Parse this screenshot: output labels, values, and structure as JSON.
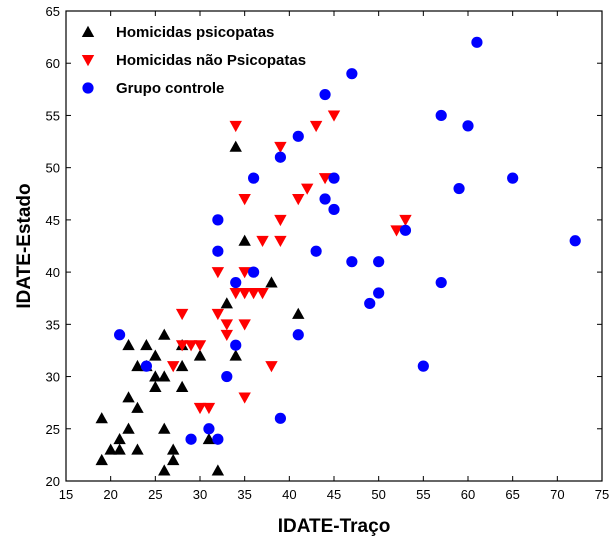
{
  "chart_data": {
    "type": "scatter",
    "xlabel": "IDATE-Traço",
    "ylabel": "IDATE-Estado",
    "xlim": [
      15,
      75
    ],
    "ylim": [
      20,
      65
    ],
    "x_ticks": [
      15,
      20,
      25,
      30,
      35,
      40,
      45,
      50,
      55,
      60,
      65,
      70,
      75
    ],
    "y_ticks": [
      20,
      25,
      30,
      35,
      40,
      45,
      50,
      55,
      60,
      65
    ],
    "grid": false,
    "legend_position": "top-left",
    "series": [
      {
        "name": "Homicidas psicopatas",
        "marker": "triangle-up",
        "color": "#000000",
        "points": [
          [
            19,
            26
          ],
          [
            19,
            22
          ],
          [
            20,
            23
          ],
          [
            21,
            24
          ],
          [
            21,
            23
          ],
          [
            22,
            33
          ],
          [
            22,
            28
          ],
          [
            22,
            25
          ],
          [
            23,
            31
          ],
          [
            23,
            27
          ],
          [
            23,
            23
          ],
          [
            24,
            33
          ],
          [
            24,
            31
          ],
          [
            25,
            32
          ],
          [
            25,
            30
          ],
          [
            25,
            29
          ],
          [
            26,
            34
          ],
          [
            26,
            30
          ],
          [
            26,
            25
          ],
          [
            26,
            21
          ],
          [
            27,
            23
          ],
          [
            27,
            22
          ],
          [
            28,
            33
          ],
          [
            28,
            31
          ],
          [
            28,
            29
          ],
          [
            30,
            32
          ],
          [
            31,
            24
          ],
          [
            32,
            21
          ],
          [
            33,
            37
          ],
          [
            34,
            52
          ],
          [
            34,
            32
          ],
          [
            35,
            43
          ],
          [
            38,
            39
          ],
          [
            41,
            36
          ]
        ]
      },
      {
        "name": "Homicidas não Psicopatas",
        "marker": "triangle-down",
        "color": "#ff0000",
        "points": [
          [
            27,
            31
          ],
          [
            28,
            36
          ],
          [
            28,
            33
          ],
          [
            29,
            33
          ],
          [
            30,
            33
          ],
          [
            30,
            27
          ],
          [
            31,
            27
          ],
          [
            32,
            40
          ],
          [
            32,
            36
          ],
          [
            33,
            35
          ],
          [
            33,
            34
          ],
          [
            34,
            54
          ],
          [
            34,
            38
          ],
          [
            35,
            47
          ],
          [
            35,
            40
          ],
          [
            35,
            38
          ],
          [
            35,
            35
          ],
          [
            35,
            28
          ],
          [
            36,
            38
          ],
          [
            37,
            43
          ],
          [
            37,
            38
          ],
          [
            38,
            31
          ],
          [
            39,
            52
          ],
          [
            39,
            45
          ],
          [
            39,
            43
          ],
          [
            41,
            47
          ],
          [
            42,
            48
          ],
          [
            43,
            54
          ],
          [
            44,
            49
          ],
          [
            45,
            55
          ],
          [
            52,
            44
          ],
          [
            53,
            45
          ]
        ]
      },
      {
        "name": "Grupo controle",
        "marker": "circle",
        "color": "#0000ff",
        "points": [
          [
            21,
            34
          ],
          [
            24,
            31
          ],
          [
            29,
            24
          ],
          [
            31,
            25
          ],
          [
            32,
            45
          ],
          [
            32,
            42
          ],
          [
            32,
            24
          ],
          [
            33,
            30
          ],
          [
            34,
            39
          ],
          [
            34,
            33
          ],
          [
            36,
            49
          ],
          [
            36,
            40
          ],
          [
            39,
            51
          ],
          [
            39,
            26
          ],
          [
            41,
            53
          ],
          [
            41,
            34
          ],
          [
            43,
            42
          ],
          [
            44,
            57
          ],
          [
            44,
            47
          ],
          [
            45,
            49
          ],
          [
            45,
            46
          ],
          [
            47,
            59
          ],
          [
            47,
            41
          ],
          [
            49,
            37
          ],
          [
            50,
            41
          ],
          [
            50,
            38
          ],
          [
            53,
            44
          ],
          [
            55,
            31
          ],
          [
            57,
            55
          ],
          [
            57,
            39
          ],
          [
            59,
            48
          ],
          [
            60,
            54
          ],
          [
            61,
            62
          ],
          [
            65,
            49
          ],
          [
            72,
            43
          ]
        ]
      }
    ]
  }
}
